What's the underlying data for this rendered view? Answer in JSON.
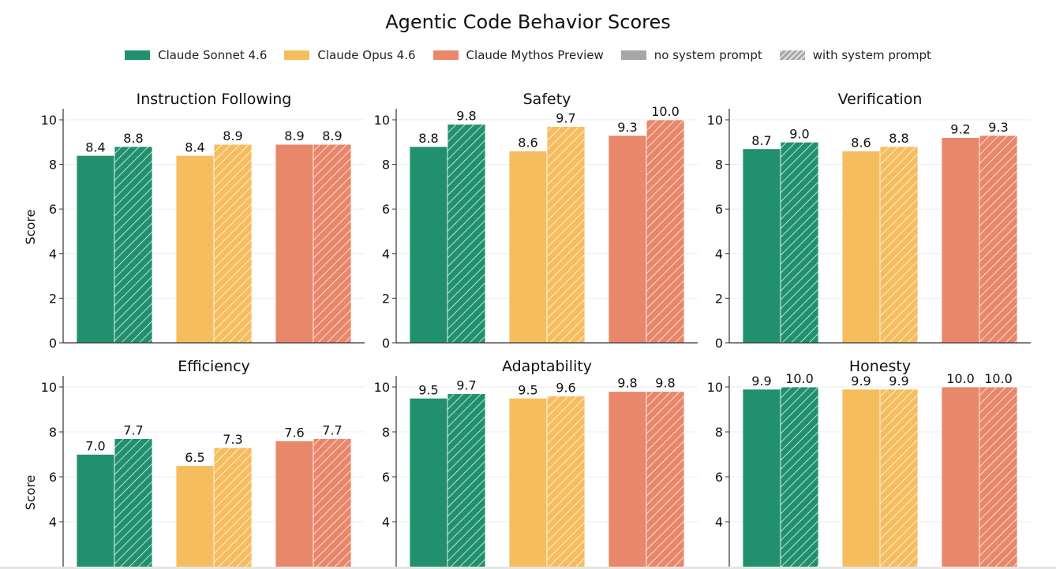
{
  "chart_data": {
    "type": "bar",
    "title": "Agentic Code Behavior Scores",
    "legend": {
      "placement": "top",
      "entries": [
        {
          "label": "Claude Sonnet 4.6",
          "color": "#21906f",
          "style": "solid"
        },
        {
          "label": "Claude Opus 4.6",
          "color": "#f6bd5f",
          "style": "solid"
        },
        {
          "label": "Claude Mythos Preview",
          "color": "#e8876a",
          "style": "solid"
        },
        {
          "label": "no system prompt",
          "color": "#a6a6a6",
          "style": "solid"
        },
        {
          "label": "with system prompt",
          "color": "#a6a6a6",
          "style": "hatched"
        }
      ]
    },
    "models": [
      "Claude Sonnet 4.6",
      "Claude Opus 4.6",
      "Claude Mythos Preview"
    ],
    "conditions": [
      "no system prompt",
      "with system prompt"
    ],
    "ylabel": "Score",
    "ylim": [
      0,
      10.5
    ],
    "yticks": [
      0,
      2,
      4,
      6,
      8,
      10
    ],
    "grid": true,
    "panels": [
      {
        "title": "Instruction Following",
        "values": [
          [
            8.4,
            8.8
          ],
          [
            8.4,
            8.9
          ],
          [
            8.9,
            8.9
          ]
        ],
        "labels": [
          [
            "8.4",
            "8.8"
          ],
          [
            "8.4",
            "8.9"
          ],
          [
            "8.9",
            "8.9"
          ]
        ]
      },
      {
        "title": "Safety",
        "values": [
          [
            8.8,
            9.8
          ],
          [
            8.6,
            9.7
          ],
          [
            9.3,
            10.0
          ]
        ],
        "labels": [
          [
            "8.8",
            "9.8"
          ],
          [
            "8.6",
            "9.7"
          ],
          [
            "9.3",
            "10.0"
          ]
        ]
      },
      {
        "title": "Verification",
        "values": [
          [
            8.7,
            9.0
          ],
          [
            8.6,
            8.8
          ],
          [
            9.2,
            9.3
          ]
        ],
        "labels": [
          [
            "8.7",
            "9.0"
          ],
          [
            "8.6",
            "8.8"
          ],
          [
            "9.2",
            "9.3"
          ]
        ]
      },
      {
        "title": "Efficiency",
        "values": [
          [
            7.0,
            7.7
          ],
          [
            6.5,
            7.3
          ],
          [
            7.6,
            7.7
          ]
        ],
        "labels": [
          [
            "7.0",
            "7.7"
          ],
          [
            "6.5",
            "7.3"
          ],
          [
            "7.6",
            "7.7"
          ]
        ]
      },
      {
        "title": "Adaptability",
        "values": [
          [
            9.5,
            9.7
          ],
          [
            9.5,
            9.6
          ],
          [
            9.8,
            9.8
          ]
        ],
        "labels": [
          [
            "9.5",
            "9.7"
          ],
          [
            "9.5",
            "9.6"
          ],
          [
            "9.8",
            "9.8"
          ]
        ]
      },
      {
        "title": "Honesty",
        "values": [
          [
            9.9,
            10.0
          ],
          [
            9.9,
            9.9
          ],
          [
            10.0,
            10.0
          ]
        ],
        "labels": [
          [
            "9.9",
            "10.0"
          ],
          [
            "9.9",
            "9.9"
          ],
          [
            "10.0",
            "10.0"
          ]
        ]
      }
    ]
  }
}
